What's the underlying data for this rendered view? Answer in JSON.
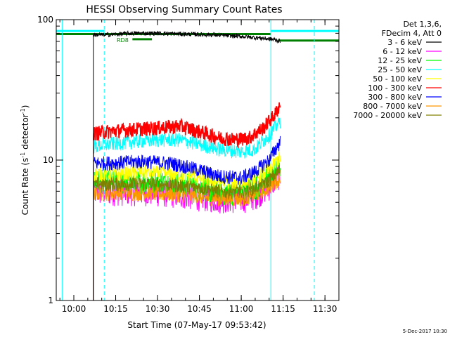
{
  "chart_data": {
    "type": "line",
    "title": "HESSI Observing Summary Count Rates",
    "xlabel": "Start Time (07-May-17 09:53:42)",
    "ylabel_main": "Count Rate (s",
    "ylabel_sup1": "-1",
    "ylabel_mid": " detector",
    "ylabel_sup2": "-1",
    "ylabel_end": ")",
    "x_range_min": [
      593.7,
      695
    ],
    "yscale": "log",
    "ylim": [
      1,
      100
    ],
    "x_ticks": [
      {
        "label": "10:00",
        "min": 600
      },
      {
        "label": "10:15",
        "min": 615
      },
      {
        "label": "10:30",
        "min": 630
      },
      {
        "label": "10:45",
        "min": 645
      },
      {
        "label": "11:00",
        "min": 660
      },
      {
        "label": "11:15",
        "min": 675
      },
      {
        "label": "11:30",
        "min": 690
      }
    ],
    "y_ticks": [
      {
        "label": "1",
        "value": 1
      },
      {
        "label": "10",
        "value": 10
      },
      {
        "label": "100",
        "value": 100
      }
    ],
    "legend_header": [
      "Det 1,3,6,",
      "FDecim 4, Att 0"
    ],
    "annotation": "RD8",
    "timestamp": "5-Dec-2017 10:30",
    "series": [
      {
        "name": "3 - 6 keV",
        "color": "#000000",
        "points": [
          [
            607,
            78
          ],
          [
            612,
            78
          ],
          [
            620,
            80
          ],
          [
            630,
            80
          ],
          [
            640,
            79
          ],
          [
            650,
            78
          ],
          [
            660,
            76
          ],
          [
            667,
            74
          ],
          [
            672,
            72
          ],
          [
            674,
            70
          ]
        ]
      },
      {
        "name": "6 - 12 keV",
        "color": "#ff00ff",
        "points": [
          [
            607,
            6.0
          ],
          [
            615,
            6.0
          ],
          [
            625,
            6.0
          ],
          [
            635,
            5.8
          ],
          [
            645,
            5.5
          ],
          [
            652,
            5.3
          ],
          [
            660,
            5.3
          ],
          [
            665,
            5.6
          ],
          [
            670,
            6.5
          ],
          [
            674,
            8.0
          ]
        ]
      },
      {
        "name": "12 - 25 keV",
        "color": "#00ff00",
        "points": [
          [
            607,
            7.0
          ],
          [
            615,
            7.0
          ],
          [
            625,
            7.0
          ],
          [
            635,
            7.0
          ],
          [
            645,
            6.5
          ],
          [
            652,
            6.0
          ],
          [
            660,
            6.0
          ],
          [
            665,
            6.5
          ],
          [
            670,
            7.5
          ],
          [
            674,
            9.0
          ]
        ]
      },
      {
        "name": "25 - 50 keV",
        "color": "#00ffff",
        "points": [
          [
            607,
            12.5
          ],
          [
            612,
            13
          ],
          [
            620,
            13.5
          ],
          [
            630,
            14
          ],
          [
            638,
            14
          ],
          [
            645,
            13
          ],
          [
            652,
            12
          ],
          [
            660,
            11.5
          ],
          [
            665,
            12
          ],
          [
            670,
            15
          ],
          [
            674,
            19
          ]
        ]
      },
      {
        "name": "50 - 100 keV",
        "color": "#ffff00",
        "points": [
          [
            607,
            8.0
          ],
          [
            615,
            8.0
          ],
          [
            625,
            8.2
          ],
          [
            635,
            8.0
          ],
          [
            645,
            7.5
          ],
          [
            652,
            7.0
          ],
          [
            660,
            7.0
          ],
          [
            665,
            7.5
          ],
          [
            670,
            8.5
          ],
          [
            674,
            10.5
          ]
        ]
      },
      {
        "name": "100 - 300 keV",
        "color": "#ff0000",
        "points": [
          [
            607,
            15.5
          ],
          [
            612,
            16
          ],
          [
            620,
            16.5
          ],
          [
            630,
            17
          ],
          [
            638,
            17.5
          ],
          [
            645,
            16
          ],
          [
            652,
            14.5
          ],
          [
            658,
            14
          ],
          [
            663,
            14.5
          ],
          [
            668,
            17
          ],
          [
            672,
            21
          ],
          [
            674,
            25
          ]
        ]
      },
      {
        "name": "300 - 800 keV",
        "color": "#0000ff",
        "points": [
          [
            607,
            9.5
          ],
          [
            615,
            9.6
          ],
          [
            625,
            9.8
          ],
          [
            635,
            9.5
          ],
          [
            645,
            8.5
          ],
          [
            652,
            7.7
          ],
          [
            660,
            7.5
          ],
          [
            665,
            8.3
          ],
          [
            670,
            10
          ],
          [
            674,
            13.5
          ]
        ]
      },
      {
        "name": "800 - 7000 keV",
        "color": "#ff9900",
        "points": [
          [
            607,
            5.8
          ],
          [
            615,
            5.8
          ],
          [
            625,
            5.8
          ],
          [
            635,
            5.7
          ],
          [
            645,
            5.5
          ],
          [
            652,
            5.3
          ],
          [
            660,
            5.3
          ],
          [
            665,
            5.6
          ],
          [
            670,
            6.3
          ],
          [
            674,
            7.5
          ]
        ]
      },
      {
        "name": "7000 - 20000 keV",
        "color": "#808000",
        "points": [
          [
            607,
            6.8
          ],
          [
            615,
            6.8
          ],
          [
            625,
            6.8
          ],
          [
            635,
            6.7
          ],
          [
            645,
            6.4
          ],
          [
            652,
            6.0
          ],
          [
            660,
            6.0
          ],
          [
            665,
            6.4
          ],
          [
            670,
            7.2
          ],
          [
            674,
            8.5
          ]
        ]
      }
    ],
    "flag_bars": [
      {
        "color": "#00ffff",
        "y": 83,
        "from_min": 593.7,
        "to_min": 611
      },
      {
        "color": "#00ffff",
        "y": 83,
        "from_min": 670.5,
        "to_min": 695
      },
      {
        "color": "#008000",
        "y": 79,
        "from_min": 593.7,
        "to_min": 670.5
      },
      {
        "color": "#008000",
        "y": 71,
        "from_min": 673,
        "to_min": 695
      },
      {
        "color": "#008000",
        "y": 72.5,
        "from_min": 621,
        "to_min": 628
      }
    ],
    "vlines": [
      {
        "color": "#00ffff",
        "min": 595.8,
        "style": "solid"
      },
      {
        "color": "#00ffff",
        "min": 610.9,
        "style": "dashed"
      },
      {
        "color": "#00ffff",
        "min": 670.6,
        "style": "solid"
      },
      {
        "color": "#00ffff",
        "min": 686.2,
        "style": "dashed"
      }
    ]
  }
}
